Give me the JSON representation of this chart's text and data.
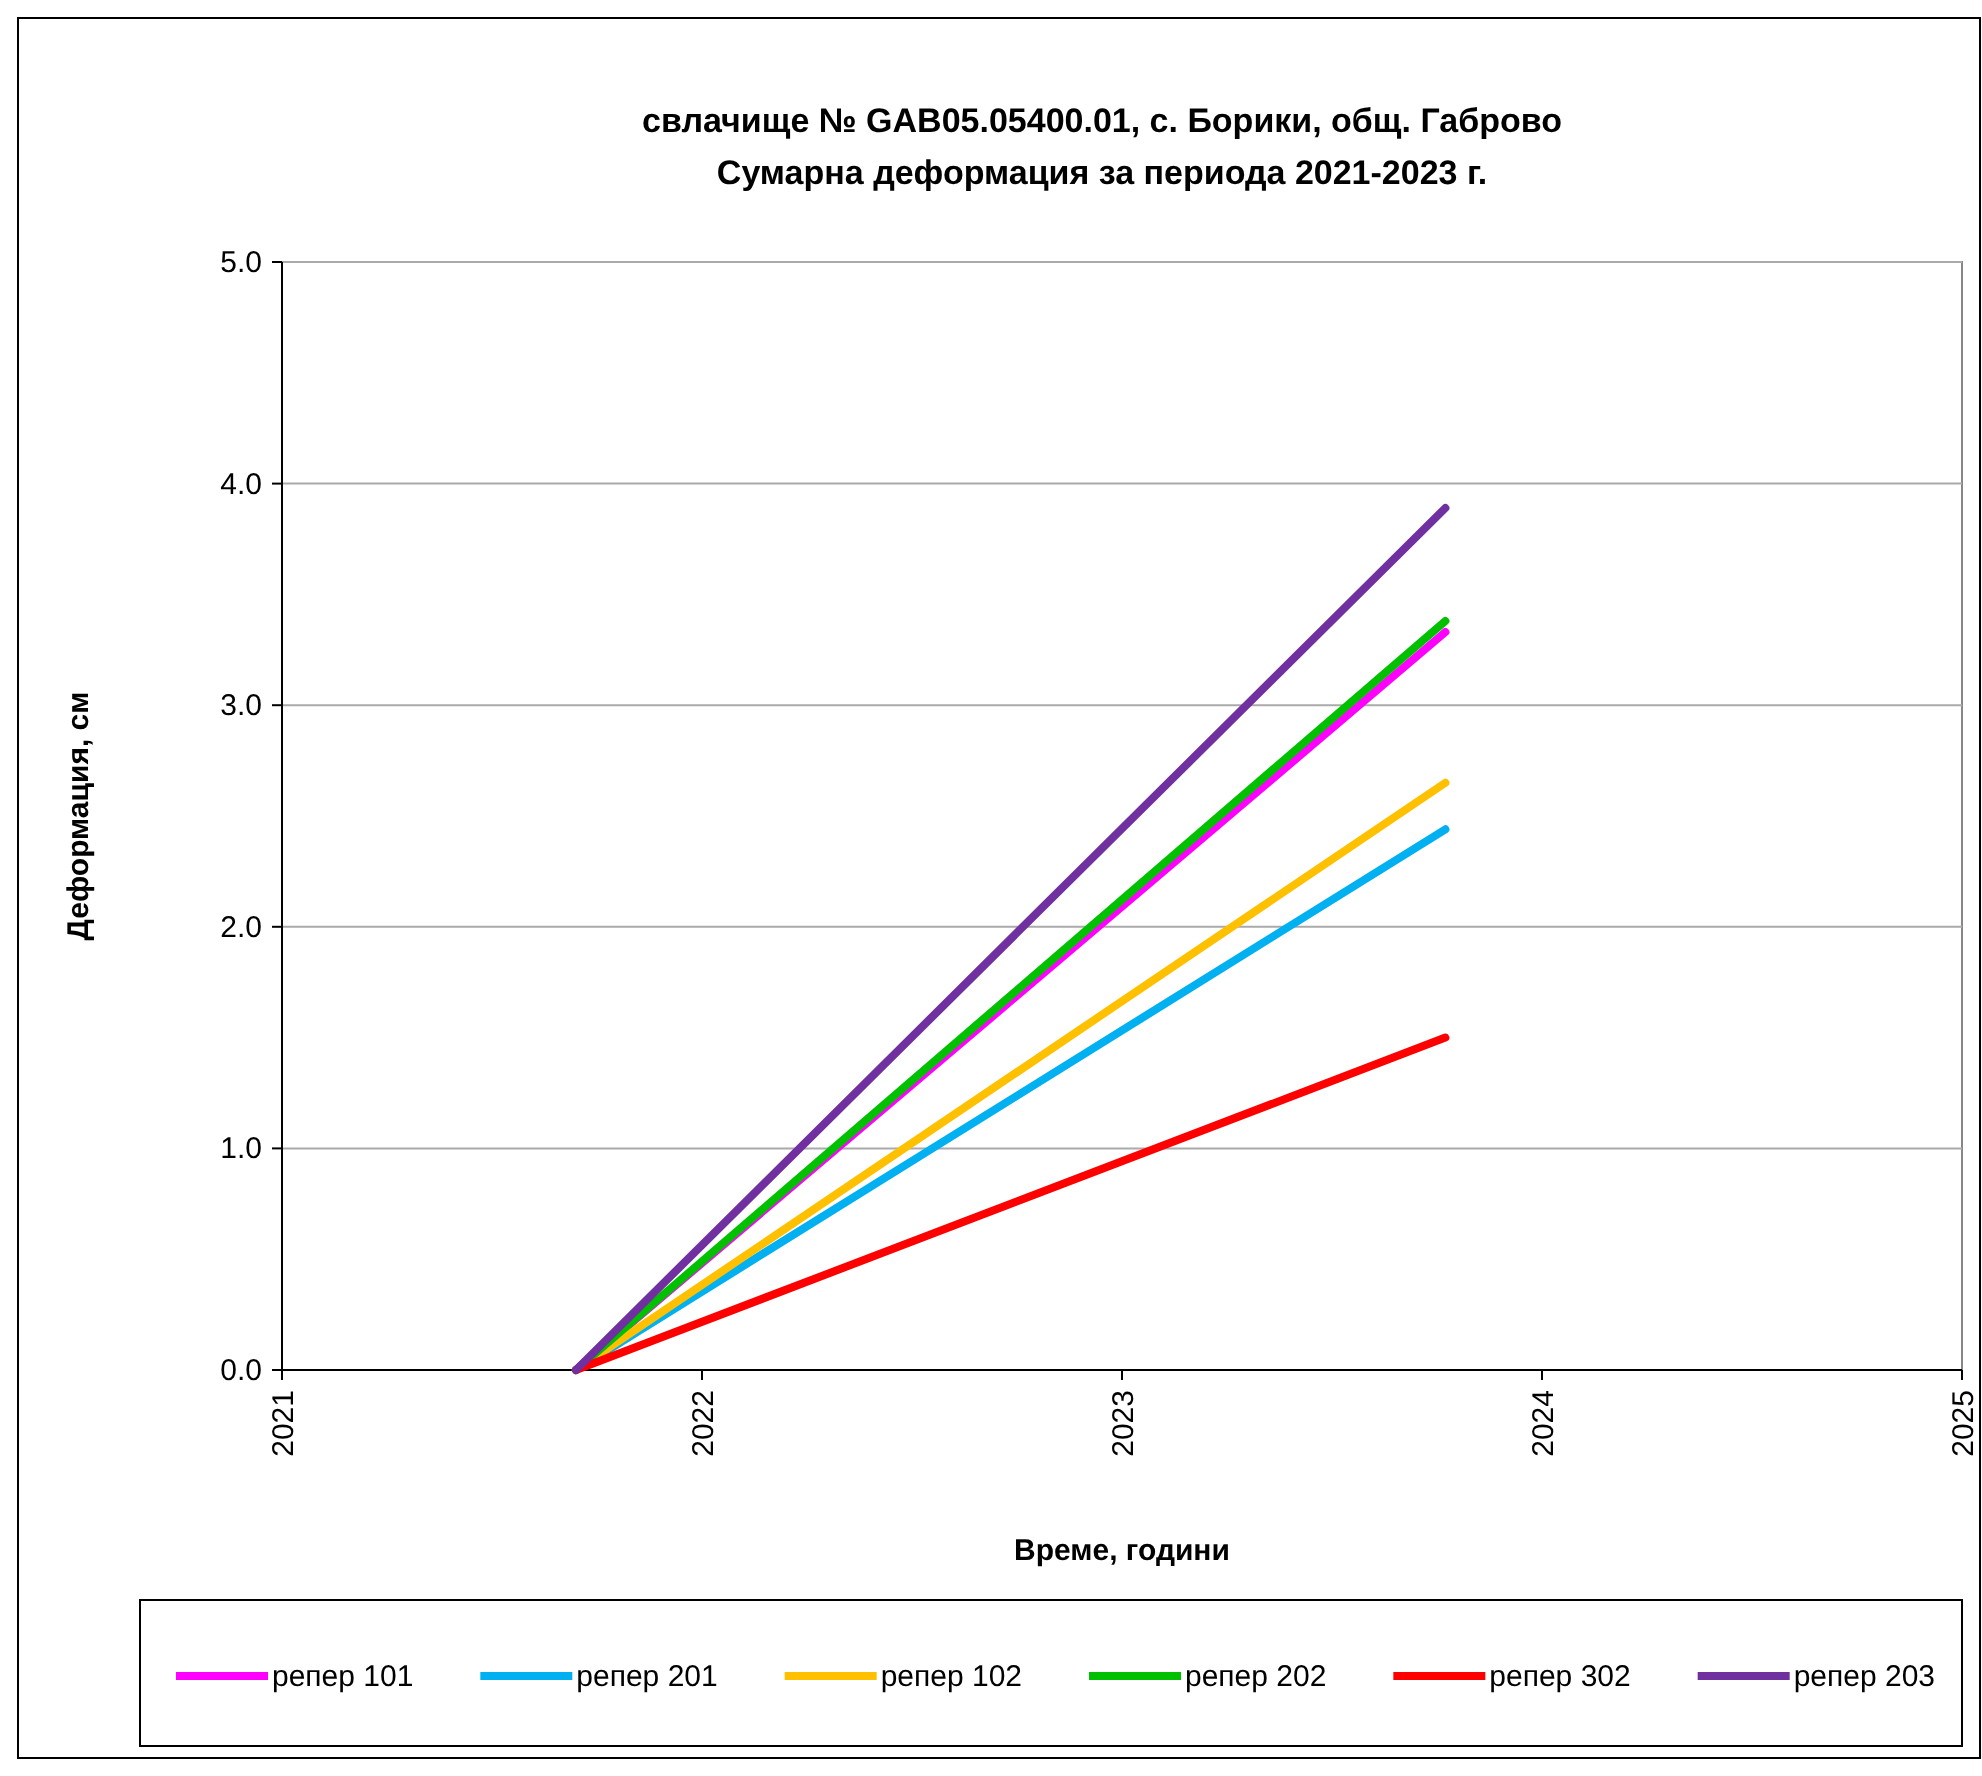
{
  "chart_data": {
    "type": "line",
    "title": "свлачище № GAB05.05400.01, с. Борики, общ. Габрово",
    "subtitle": "Сумарна деформация за периода 2021-2023 г.",
    "xlabel": "Време, години",
    "ylabel": "Деформация, см",
    "xlim": [
      2021,
      2025
    ],
    "xticks": [
      2021,
      2022,
      2023,
      2024,
      2025
    ],
    "ylim": [
      0,
      5
    ],
    "yticks": [
      {
        "value": 0,
        "label": "0.0"
      },
      {
        "value": 1,
        "label": "1.0"
      },
      {
        "value": 2,
        "label": "2.0"
      },
      {
        "value": 3,
        "label": "3.0"
      },
      {
        "value": 4,
        "label": "4.0"
      },
      {
        "value": 5,
        "label": "5.0"
      }
    ],
    "grid": "y",
    "legend": "bottom",
    "marker": "none",
    "line_style": "solid",
    "x": [
      2021.7,
      2023.77
    ],
    "series": [
      {
        "name": "репер 101",
        "color": "#ff00ff",
        "values": [
          0,
          3.33
        ]
      },
      {
        "name": "репер 201",
        "color": "#00b0f0",
        "values": [
          0,
          2.44
        ]
      },
      {
        "name": "репер 102",
        "color": "#ffc000",
        "values": [
          0,
          2.65
        ]
      },
      {
        "name": "репер 202",
        "color": "#00c000",
        "values": [
          0,
          3.38
        ]
      },
      {
        "name": "репер 302",
        "color": "#ff0000",
        "values": [
          0,
          1.5
        ]
      },
      {
        "name": "репер 203",
        "color": "#7030a0",
        "values": [
          0,
          3.89
        ]
      }
    ]
  }
}
